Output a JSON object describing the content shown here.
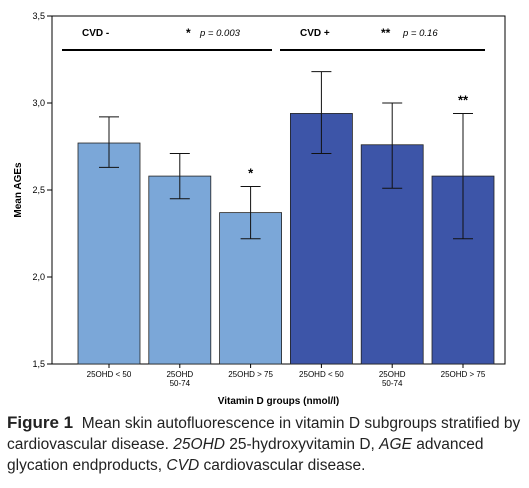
{
  "chart_data": {
    "type": "bar",
    "ylabel": "Mean AGEs",
    "xlabel": "Vitamin D groups (nmol/l)",
    "ylim": [
      1.5,
      3.5
    ],
    "yticks": [
      1.5,
      2.0,
      2.5,
      3.0,
      3.5
    ],
    "ytick_labels": [
      "1,5",
      "2,0",
      "2,5",
      "3,0",
      "3,5"
    ],
    "grid": false,
    "categories": [
      [
        "25OHD < 50"
      ],
      [
        "25OHD",
        "50-74"
      ],
      [
        "25OHD > 75"
      ],
      [
        "25OHD < 50"
      ],
      [
        "25OHD",
        "50-74"
      ],
      [
        "25OHD > 75"
      ]
    ],
    "groups": [
      {
        "label": "CVD -",
        "annotation": "* p = 0.003",
        "annotation_star": "*",
        "annotation_text": "p = 0.003",
        "color": "#7ba7d8",
        "bars": [
          0,
          1,
          2
        ]
      },
      {
        "label": "CVD +",
        "annotation": "** p = 0.16",
        "annotation_star": "**",
        "annotation_text": "p = 0.16",
        "color": "#3d55a8",
        "bars": [
          3,
          4,
          5
        ]
      }
    ],
    "values": [
      2.77,
      2.58,
      2.37,
      2.94,
      2.76,
      2.58
    ],
    "error_low": [
      2.63,
      2.45,
      2.22,
      2.71,
      2.51,
      2.22
    ],
    "error_high": [
      2.92,
      2.71,
      2.52,
      3.18,
      3.0,
      2.94
    ],
    "bar_markers": [
      "",
      "",
      "*",
      "",
      "",
      "**"
    ]
  },
  "caption": {
    "label": "Figure 1",
    "text_1": "Mean skin autofluorescence in vitamin D subgroups stratified by cardiovascular disease. ",
    "em_1": "25OHD",
    "text_2": " 25-hydroxyvitamin D, ",
    "em_2": "AGE",
    "text_3": " advanced glycation endproducts, ",
    "em_3": "CVD",
    "text_4": " cardiovascular disease."
  }
}
